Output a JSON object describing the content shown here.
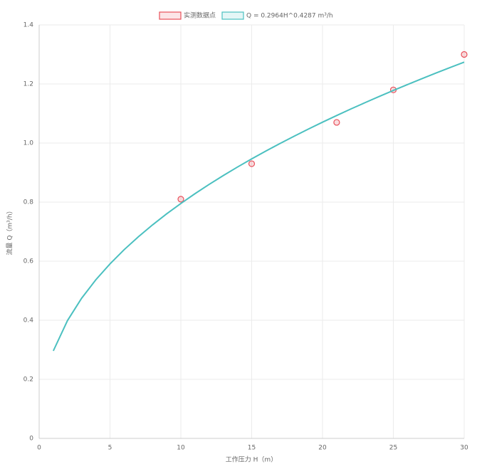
{
  "chart_data": {
    "type": "line",
    "x_label": "工作压力 H（m）",
    "y_label": "流量 Q（m³/h）",
    "xlim": [
      0,
      30
    ],
    "xticks": [
      0,
      5,
      10,
      15,
      20,
      25,
      30
    ],
    "ylim": [
      0,
      1.4
    ],
    "yticks": [
      0,
      0.2,
      0.4,
      0.6,
      0.8,
      {
        "value": 1,
        "label": "1.0"
      },
      1.2,
      1.4
    ],
    "grid": true,
    "series": [
      {
        "name": "实测数据点",
        "type": "scatter",
        "color": "#e8505b",
        "x": [
          10,
          15,
          21,
          25,
          30
        ],
        "values": [
          0.81,
          0.93,
          1.07,
          1.18,
          1.3
        ]
      },
      {
        "name": "Q = 0.2964H^0.4287 m³/h",
        "type": "line",
        "color": "#4bc0c0",
        "x": [
          1,
          2,
          3,
          4,
          5,
          6,
          7,
          8,
          9,
          10,
          11,
          12,
          13,
          14,
          15,
          16,
          17,
          18,
          19,
          20,
          21,
          22,
          23,
          24,
          25,
          26,
          27,
          28,
          29,
          30
        ],
        "values": [
          0.2964,
          0.399,
          0.4747,
          0.537,
          0.5909,
          0.639,
          0.6826,
          0.7228,
          0.7603,
          0.7954,
          0.8286,
          0.86,
          0.8901,
          0.9188,
          0.9464,
          0.9729,
          0.9985,
          1.0233,
          1.0473,
          1.0706,
          1.0932,
          1.1153,
          1.1367,
          1.1577,
          1.1781,
          1.1981,
          1.2176,
          1.2368,
          1.2555,
          1.2739
        ]
      }
    ]
  }
}
